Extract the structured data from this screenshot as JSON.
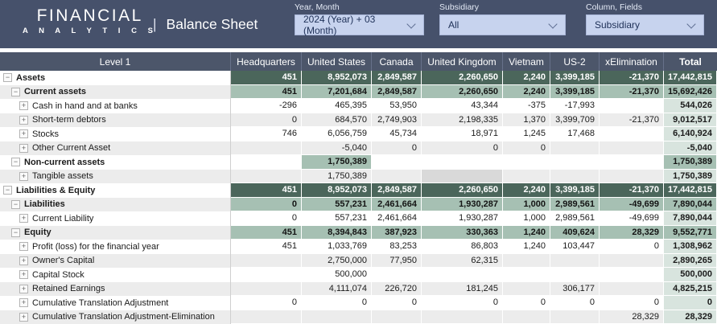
{
  "brand": {
    "line1": "FINANCIAL",
    "line2": "A N A L Y T I C S"
  },
  "title": {
    "separator": "|",
    "text": "Balance Sheet"
  },
  "filters": [
    {
      "label": "Year, Month",
      "value": "2024 (Year) + 03 (Month)"
    },
    {
      "label": "Subsidiary",
      "value": "All"
    },
    {
      "label": "Column, Fields",
      "value": "Subsidiary"
    }
  ],
  "colors": {
    "topbar_navy": "#46516B",
    "header_navy": "#4C566A",
    "dark_green": "#4B665B",
    "medium_green": "#A6C0B3",
    "light_green": "#D8E4DE",
    "stripe_gray": "#ECECEC",
    "selected_cell_gray": "#D9D9D9",
    "dropdown_bg": "#C7D3EE"
  },
  "table": {
    "columns": [
      "Level 1",
      "Headquarters",
      "United States",
      "Canada",
      "United Kingdom",
      "Vietnam",
      "US-2",
      "xElimination",
      "Total"
    ],
    "rows": [
      {
        "label": "Assets",
        "level": 0,
        "expand": "minus",
        "style": "dark",
        "values": [
          "451",
          "8,952,073",
          "2,849,587",
          "2,260,650",
          "2,240",
          "3,399,185",
          "-21,370",
          "17,442,815"
        ]
      },
      {
        "label": "Current assets",
        "level": 1,
        "expand": "minus",
        "style": "medium",
        "values": [
          "451",
          "7,201,684",
          "2,849,587",
          "2,260,650",
          "2,240",
          "3,399,185",
          "-21,370",
          "15,692,426"
        ]
      },
      {
        "label": "Cash in hand and at banks",
        "level": 2,
        "expand": "plus",
        "style": "leaf",
        "values": [
          "-296",
          "465,395",
          "53,950",
          "43,344",
          "-375",
          "-17,993",
          "",
          "544,026"
        ]
      },
      {
        "label": "Short-term debtors",
        "level": 2,
        "expand": "plus",
        "style": "leaf",
        "values": [
          "0",
          "684,570",
          "2,749,903",
          "2,198,335",
          "1,370",
          "3,399,709",
          "-21,370",
          "9,012,517"
        ]
      },
      {
        "label": "Stocks",
        "level": 2,
        "expand": "plus",
        "style": "leaf",
        "values": [
          "746",
          "6,056,759",
          "45,734",
          "18,971",
          "1,245",
          "17,468",
          "",
          "6,140,924"
        ]
      },
      {
        "label": "Other Current Asset",
        "level": 2,
        "expand": "plus",
        "style": "leaf",
        "values": [
          "",
          "-5,040",
          "0",
          "0",
          "0",
          "",
          "",
          "-5,040"
        ]
      },
      {
        "label": "Non-current assets",
        "level": 1,
        "expand": "minus",
        "style": "medium",
        "values": [
          "",
          "1,750,389",
          "",
          "",
          "",
          "",
          "",
          "1,750,389"
        ]
      },
      {
        "label": "Tangible assets",
        "level": 2,
        "expand": "plus",
        "style": "leaf",
        "highlight": 3,
        "values": [
          "",
          "1,750,389",
          "",
          "",
          "",
          "",
          "",
          "1,750,389"
        ]
      },
      {
        "label": "Liabilities & Equity",
        "level": 0,
        "expand": "minus",
        "style": "dark",
        "values": [
          "451",
          "8,952,073",
          "2,849,587",
          "2,260,650",
          "2,240",
          "3,399,185",
          "-21,370",
          "17,442,815"
        ]
      },
      {
        "label": "Liabilities",
        "level": 1,
        "expand": "minus",
        "style": "medium",
        "values": [
          "0",
          "557,231",
          "2,461,664",
          "1,930,287",
          "1,000",
          "2,989,561",
          "-49,699",
          "7,890,044"
        ]
      },
      {
        "label": "Current Liability",
        "level": 2,
        "expand": "plus",
        "style": "leaf",
        "values": [
          "0",
          "557,231",
          "2,461,664",
          "1,930,287",
          "1,000",
          "2,989,561",
          "-49,699",
          "7,890,044"
        ]
      },
      {
        "label": "Equity",
        "level": 1,
        "expand": "minus",
        "style": "medium",
        "values": [
          "451",
          "8,394,843",
          "387,923",
          "330,363",
          "1,240",
          "409,624",
          "28,329",
          "9,552,771"
        ]
      },
      {
        "label": "Profit (loss) for the financial year",
        "level": 2,
        "expand": "plus",
        "style": "leaf",
        "values": [
          "451",
          "1,033,769",
          "83,253",
          "86,803",
          "1,240",
          "103,447",
          "0",
          "1,308,962"
        ]
      },
      {
        "label": "Owner's Capital",
        "level": 2,
        "expand": "plus",
        "style": "leaf",
        "values": [
          "",
          "2,750,000",
          "77,950",
          "62,315",
          "",
          "",
          "",
          "2,890,265"
        ]
      },
      {
        "label": "Capital Stock",
        "level": 2,
        "expand": "plus",
        "style": "leaf",
        "values": [
          "",
          "500,000",
          "",
          "",
          "",
          "",
          "",
          "500,000"
        ]
      },
      {
        "label": "Retained Earnings",
        "level": 2,
        "expand": "plus",
        "style": "leaf",
        "values": [
          "",
          "4,111,074",
          "226,720",
          "181,245",
          "",
          "306,177",
          "",
          "4,825,215"
        ]
      },
      {
        "label": "Cumulative Translation Adjustment",
        "level": 2,
        "expand": "plus",
        "style": "leaf",
        "values": [
          "0",
          "0",
          "0",
          "0",
          "0",
          "0",
          "0",
          "0"
        ]
      },
      {
        "label": "Cumulative Translation Adjustment-Elimination",
        "level": 2,
        "expand": "plus",
        "style": "leaf",
        "values": [
          "",
          "",
          "",
          "",
          "",
          "",
          "28,329",
          "28,329"
        ]
      }
    ]
  }
}
